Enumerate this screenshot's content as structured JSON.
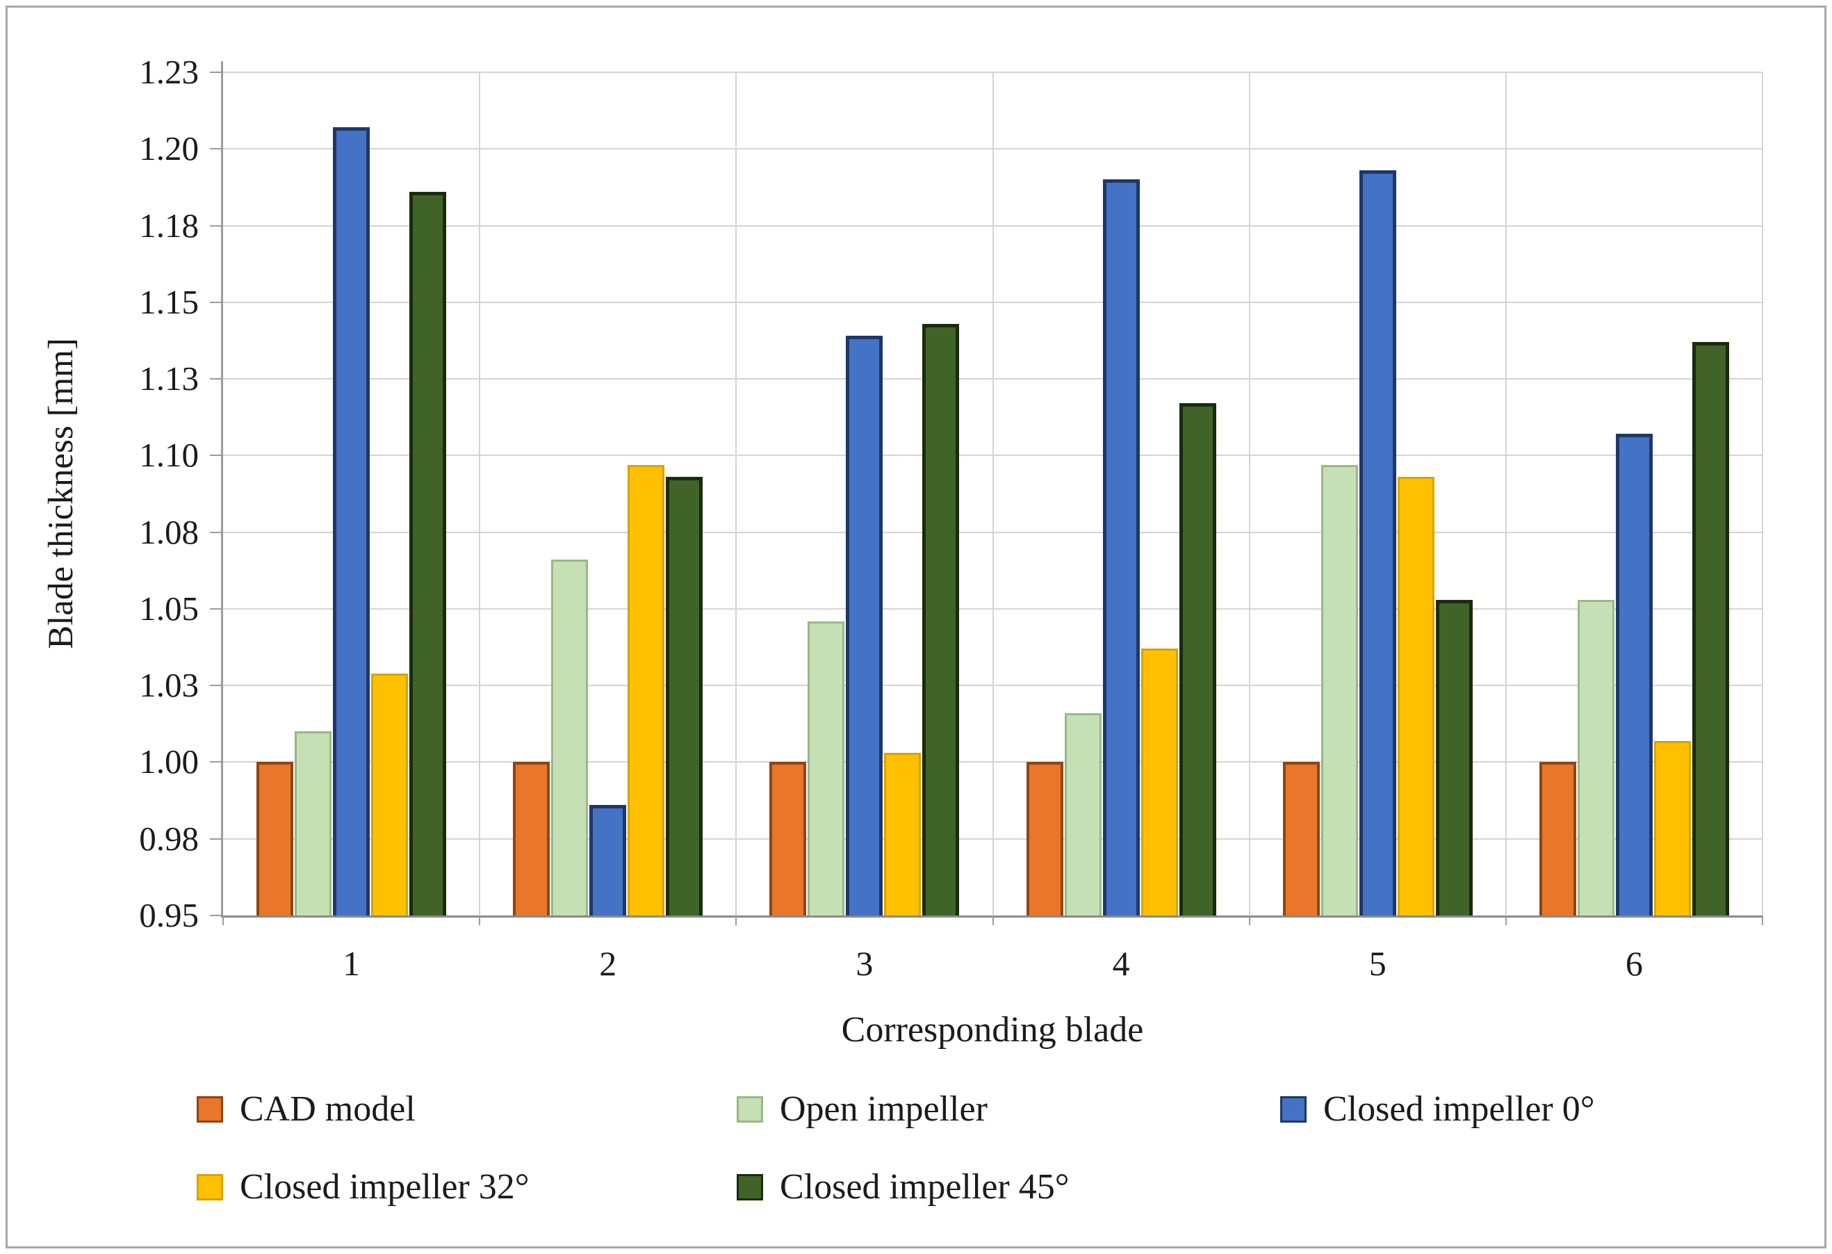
{
  "figure": {
    "background": "#ffffff",
    "border_color": "#a9a9a9",
    "gridline_color": "#d4d4d4",
    "axis_line_color": "#9b9b9b"
  },
  "chart_data": {
    "type": "bar",
    "title": "",
    "xlabel": "Corresponding blade",
    "ylabel": "Blade thickness [mm]",
    "categories": [
      "1",
      "2",
      "3",
      "4",
      "5",
      "6"
    ],
    "series": [
      {
        "name": "CAD model",
        "color": "#e8762b",
        "border": "#8f4511",
        "values": [
          1.0,
          1.0,
          1.0,
          1.0,
          1.0,
          1.0
        ]
      },
      {
        "name": "Open impeller",
        "color": "#c5e0b4",
        "border": "#9bb884",
        "values": [
          1.01,
          1.066,
          1.046,
          1.016,
          1.097,
          1.053
        ]
      },
      {
        "name": "Closed impeller 0°",
        "color": "#4472c4",
        "border": "#1f3864",
        "values": [
          1.207,
          0.986,
          1.139,
          1.19,
          1.193,
          1.107
        ]
      },
      {
        "name": "Closed impeller 32°",
        "color": "#ffc000",
        "border": "#d9a300",
        "values": [
          1.029,
          1.097,
          1.003,
          1.037,
          1.093,
          1.007
        ]
      },
      {
        "name": "Closed impeller 45°",
        "color": "#406327",
        "border": "#1a2b0e",
        "values": [
          1.186,
          1.093,
          1.143,
          1.117,
          1.053,
          1.137
        ]
      }
    ],
    "ylim": [
      0.95,
      1.225
    ],
    "ytick_step": 0.025,
    "ytick_labels": [
      "0.95",
      "0.98",
      "1.00",
      "1.03",
      "1.05",
      "1.08",
      "1.10",
      "1.13",
      "1.15",
      "1.18",
      "1.20",
      "1.23"
    ],
    "grid": true,
    "legend_position": "bottom"
  }
}
